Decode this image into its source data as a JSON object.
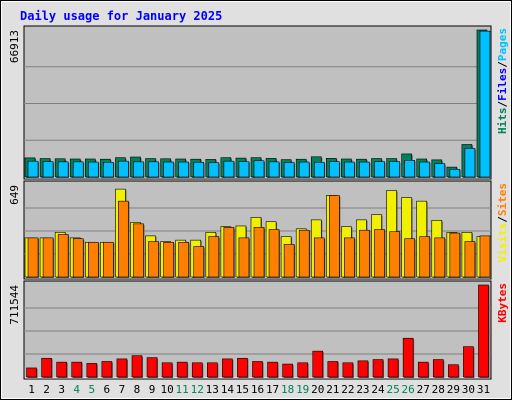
{
  "colors": {
    "background": "#e0e0e0",
    "plot": "#c0c0c0",
    "title": "#0000ff",
    "hits": "#00805c",
    "files": "#0000ff",
    "pages": "#00c0ff",
    "visits": "#f0f000",
    "sites": "#ff8000",
    "kbytes": "#ff0000",
    "weekend": "#00805c",
    "weekday": "#000000"
  },
  "chart_data": {
    "type": "bar",
    "title": "Daily usage for January 2025",
    "categories": [
      "1",
      "2",
      "3",
      "4",
      "5",
      "6",
      "7",
      "8",
      "9",
      "10",
      "11",
      "12",
      "13",
      "14",
      "15",
      "16",
      "17",
      "18",
      "19",
      "20",
      "21",
      "22",
      "23",
      "24",
      "25",
      "26",
      "27",
      "28",
      "29",
      "30",
      "31"
    ],
    "weekend_days": [
      "4",
      "5",
      "11",
      "12",
      "18",
      "19",
      "25",
      "26"
    ],
    "panels": [
      {
        "ymax_label": "66913",
        "legend": [
          {
            "text": "Hits",
            "color": "#00805c"
          },
          {
            "text": "/",
            "color": "#000000"
          },
          {
            "text": "Files",
            "color": "#0000ff"
          },
          {
            "text": "/",
            "color": "#000000"
          },
          {
            "text": "Pages",
            "color": "#00c0ff"
          }
        ],
        "series": [
          {
            "color": "#00805c",
            "values": [
              8700,
              8400,
              8300,
              8200,
              8200,
              8100,
              8800,
              9100,
              8400,
              8300,
              8200,
              8100,
              8000,
              8800,
              8600,
              8800,
              8500,
              7900,
              8100,
              9200,
              8500,
              8200,
              8100,
              8400,
              8400,
              10500,
              8200,
              7800,
              4500,
              14800,
              66913
            ]
          },
          {
            "color": "#00c0ff",
            "values": [
              7200,
              7000,
              6900,
              6900,
              6800,
              6700,
              7200,
              6900,
              6900,
              6800,
              6800,
              6700,
              6500,
              7200,
              7000,
              7400,
              6900,
              6600,
              6800,
              6700,
              7000,
              6800,
              6800,
              7000,
              7000,
              7600,
              6800,
              6100,
              3500,
              13000,
              66400
            ]
          }
        ],
        "ylim": [
          0,
          66913
        ]
      },
      {
        "ymax_label": "649",
        "legend": [
          {
            "text": "Visits",
            "color": "#f0f000"
          },
          {
            "text": "/",
            "color": "#000000"
          },
          {
            "text": "Sites",
            "color": "#ff8000"
          }
        ],
        "series": [
          {
            "color": "#f0f000",
            "values": [
              276,
              276,
              315,
              276,
              245,
              245,
              620,
              385,
              290,
              250,
              260,
              260,
              315,
              355,
              360,
              420,
              390,
              285,
              340,
              403,
              575,
              355,
              403,
              440,
              610,
              560,
              535,
              400,
              315,
              315,
              285
            ]
          },
          {
            "color": "#ff8000",
            "values": [
              276,
              276,
              300,
              270,
              245,
              245,
              535,
              375,
              250,
              245,
              245,
              215,
              285,
              350,
              276,
              350,
              335,
              230,
              330,
              276,
              575,
              276,
              330,
              335,
              320,
              270,
              285,
              276,
              310,
              250,
              290
            ]
          }
        ],
        "ylim": [
          0,
          649
        ]
      },
      {
        "ymax_label": "711544",
        "legend": [
          {
            "text": "KBytes",
            "color": "#ff0000"
          }
        ],
        "series": [
          {
            "color": "#ff0000",
            "values": [
              70000,
              145000,
              115000,
              115000,
              105000,
              120000,
              140000,
              165000,
              150000,
              110000,
              115000,
              110000,
              110000,
              140000,
              145000,
              120000,
              115000,
              100000,
              110000,
              200000,
              120000,
              110000,
              125000,
              135000,
              140000,
              300000,
              115000,
              135000,
              95000,
              235000,
              711544
            ]
          }
        ],
        "ylim": [
          0,
          711544
        ]
      }
    ]
  }
}
